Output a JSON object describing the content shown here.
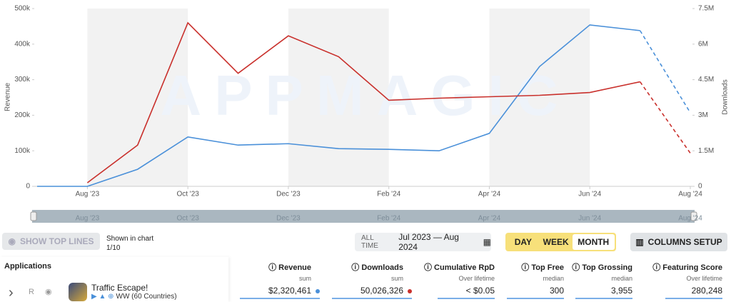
{
  "chart_data": {
    "type": "line",
    "watermark": "APPMAGIC",
    "categories": [
      null,
      "Aug '23",
      null,
      "Oct '23",
      null,
      "Dec '23",
      null,
      "Feb '24",
      null,
      "Apr '24",
      null,
      "Jun '24",
      null,
      "Aug '24"
    ],
    "series": [
      {
        "color": "#4a90d9",
        "axis": "y",
        "values": [
          0,
          0,
          48000,
          139000,
          116000,
          120000,
          106000,
          104000,
          100000,
          149000,
          337000,
          454000,
          438000,
          207000
        ]
      },
      {
        "color": "#c9302c",
        "axis": "y2",
        "values": [
          null,
          150000,
          1740000,
          6900000,
          4770000,
          6350000,
          5470000,
          3630000,
          3720000,
          3780000,
          3840000,
          3960000,
          4410000,
          1400000
        ]
      }
    ],
    "dashed_last_segment": true,
    "ylabel": "Revenue",
    "y2label": "Downloads",
    "ylim": [
      0,
      500000
    ],
    "yticks": [
      0,
      {
        "value": 100000,
        "label": "100k"
      },
      {
        "value": 200000,
        "label": "200k"
      },
      {
        "value": 300000,
        "label": "300k"
      },
      {
        "value": 400000,
        "label": "400k"
      },
      {
        "value": 500000,
        "label": "500k"
      }
    ],
    "y2lim": [
      0,
      7500000
    ],
    "y2ticks": [
      0,
      {
        "value": 1500000,
        "label": "1.5M"
      },
      {
        "value": 3000000,
        "label": "3M"
      },
      {
        "value": 4500000,
        "label": "4.5M"
      },
      {
        "value": 6000000,
        "label": "6M"
      },
      {
        "value": 7500000,
        "label": "7.5M"
      }
    ]
  },
  "toolbar": {
    "show_top_lines": "SHOW TOP LINES",
    "shown_label": "Shown in chart",
    "shown_count": "1/10",
    "range_label": "ALL TIME",
    "range": "Jul 2023 — Aug 2024",
    "periods": [
      "DAY",
      "WEEK",
      "MONTH"
    ],
    "active_period": "MONTH",
    "columns_setup": "COLUMNS SETUP"
  },
  "table": {
    "columns": [
      {
        "name": "Applications"
      },
      {
        "name": "Revenue",
        "sub": "sum"
      },
      {
        "name": "Downloads",
        "sub": "sum"
      },
      {
        "name": "Cumulative RpD",
        "sub": "Over lifetime"
      },
      {
        "name": "Top Free",
        "sub": "median"
      },
      {
        "name": "Top Grossing",
        "sub": "median"
      },
      {
        "name": "Featuring Score",
        "sub": "Over lifetime"
      }
    ],
    "rows": [
      {
        "badge": "R",
        "name": "Traffic Escape!",
        "region": "WW (60 Countries)",
        "cells": [
          "$2,320,461",
          "50,026,326",
          "< $0.05",
          "300",
          "3,955",
          "280,248"
        ]
      }
    ]
  }
}
